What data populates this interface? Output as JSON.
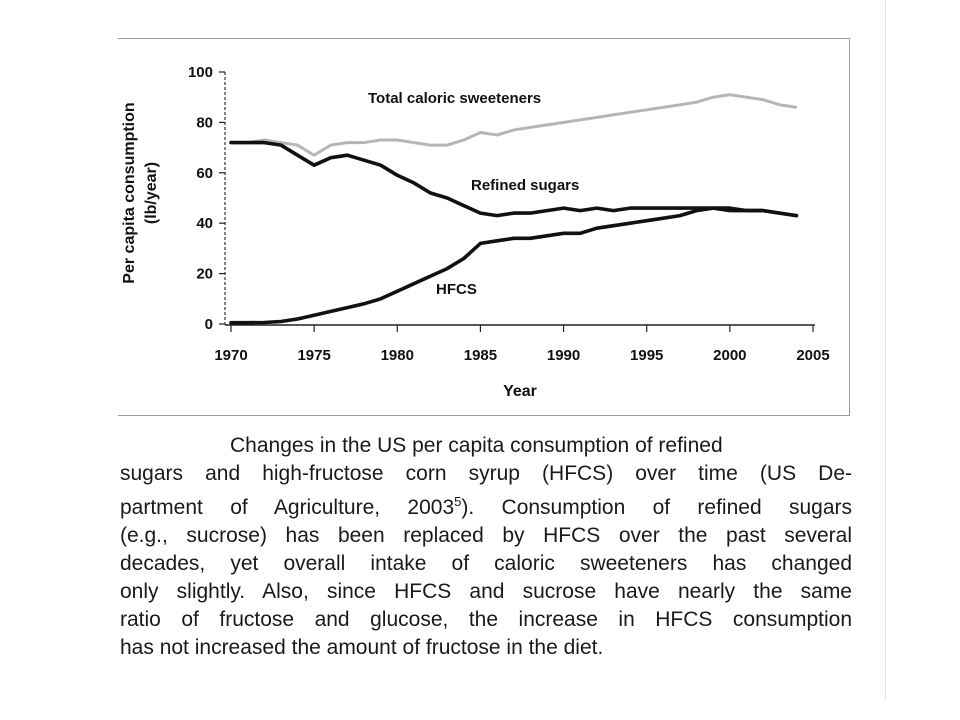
{
  "chart_data": {
    "type": "line",
    "title": "",
    "xlabel": "Year",
    "ylabel": "Per capita consumption (lb/year)",
    "xlim": [
      1970,
      2005
    ],
    "ylim": [
      0,
      100
    ],
    "xticks": [
      "1970",
      "1975",
      "1980",
      "1985",
      "1990",
      "1995",
      "2000",
      "2005"
    ],
    "yticks": [
      "0",
      "20",
      "40",
      "60",
      "80",
      "100"
    ],
    "series": [
      {
        "name": "Total caloric sweeteners",
        "color": "#b5b5b5",
        "x": [
          1970,
          1971,
          1972,
          1973,
          1974,
          1975,
          1976,
          1977,
          1978,
          1979,
          1980,
          1981,
          1982,
          1983,
          1984,
          1985,
          1986,
          1987,
          1988,
          1989,
          1990,
          1991,
          1992,
          1993,
          1994,
          1995,
          1996,
          1997,
          1998,
          1999,
          2000,
          2001,
          2002,
          2003,
          2004
        ],
        "y": [
          72,
          72,
          73,
          72,
          71,
          67,
          71,
          72,
          72,
          73,
          73,
          72,
          71,
          71,
          73,
          76,
          75,
          77,
          78,
          79,
          80,
          81,
          82,
          83,
          84,
          85,
          86,
          87,
          88,
          90,
          91,
          90,
          89,
          87,
          86
        ]
      },
      {
        "name": "Refined sugars",
        "color": "#111111",
        "x": [
          1970,
          1971,
          1972,
          1973,
          1974,
          1975,
          1976,
          1977,
          1978,
          1979,
          1980,
          1981,
          1982,
          1983,
          1984,
          1985,
          1986,
          1987,
          1988,
          1989,
          1990,
          1991,
          1992,
          1993,
          1994,
          1995,
          1996,
          1997,
          1998,
          1999,
          2000,
          2001,
          2002,
          2003,
          2004
        ],
        "y": [
          72,
          72,
          72,
          71,
          67,
          63,
          66,
          67,
          65,
          63,
          59,
          56,
          52,
          50,
          47,
          44,
          43,
          44,
          44,
          45,
          46,
          45,
          46,
          45,
          46,
          46,
          46,
          46,
          46,
          46,
          45,
          45,
          45,
          44,
          43
        ]
      },
      {
        "name": "HFCS",
        "color": "#111111",
        "x": [
          1970,
          1971,
          1972,
          1973,
          1974,
          1975,
          1976,
          1977,
          1978,
          1979,
          1980,
          1981,
          1982,
          1983,
          1984,
          1985,
          1986,
          1987,
          1988,
          1989,
          1990,
          1991,
          1992,
          1993,
          1994,
          1995,
          1996,
          1997,
          1998,
          1999,
          2000,
          2001,
          2002,
          2003,
          2004
        ],
        "y": [
          0.5,
          0.5,
          0.6,
          1,
          2,
          3.5,
          5,
          6.5,
          8,
          10,
          13,
          16,
          19,
          22,
          26,
          32,
          33,
          34,
          34,
          35,
          36,
          36,
          38,
          39,
          40,
          41,
          42,
          43,
          45,
          46,
          46,
          45,
          45,
          44,
          43
        ]
      }
    ],
    "labels": {
      "total": "Total caloric sweeteners",
      "refined": "Refined sugars",
      "hfcs": "HFCS"
    }
  },
  "caption": {
    "lines": [
      "Changes in the US per capita consumption of refined",
      "sugars and high-fructose corn syrup (HFCS) over time (US De-",
      "partment of Agriculture, 2003",
      "5",
      "). Consumption of refined sugars",
      "(e.g., sucrose) has been replaced by HFCS over the past several",
      "decades, yet overall intake of caloric sweeteners has changed",
      "only slightly. Also, since HFCS and sucrose have nearly the same",
      "ratio of fructose and glucose, the increase in HFCS consumption",
      "has not increased the amount of fructose in the diet."
    ]
  }
}
